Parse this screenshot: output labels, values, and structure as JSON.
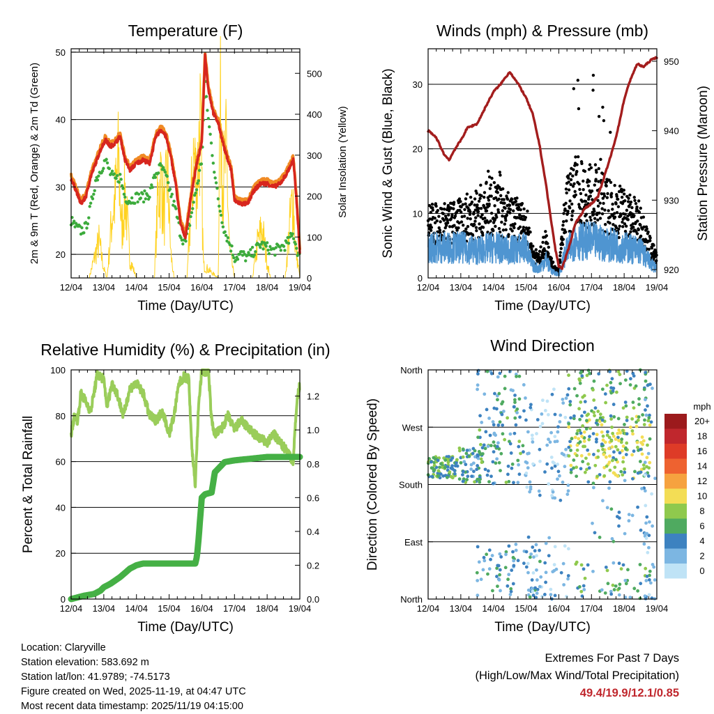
{
  "chart_data": [
    {
      "type": "line",
      "title": "Temperature (F)",
      "xlabel": "Time (Day/UTC)",
      "ylabel": "2m & 9m T (Red, Orange) & 2m Td (Green)",
      "ylabel_right": "Solar Insolation (Yellow)",
      "x_ticks": [
        "12/04",
        "13/04",
        "14/04",
        "15/04",
        "16/04",
        "17/04",
        "18/04",
        "19/04"
      ],
      "ylim": [
        16.5,
        50.5
      ],
      "y_ticks": [
        20,
        30,
        40,
        50
      ],
      "ylim_right": [
        0,
        560
      ],
      "y_ticks_right": [
        0,
        100,
        200,
        300,
        400,
        500
      ],
      "grid_y": [
        20,
        30,
        40,
        50
      ],
      "colors": {
        "temp_2m": "#d7261e",
        "temp_9m": "#f08a24",
        "dewpoint": "#3cab3c",
        "solar": "#ffd21f"
      },
      "series": [
        {
          "name": "2m T",
          "x": [
            0,
            0.15,
            0.3,
            0.45,
            0.6,
            0.75,
            0.9,
            1.05,
            1.2,
            1.35,
            1.5,
            1.65,
            1.8,
            2.0,
            2.2,
            2.4,
            2.6,
            2.75,
            2.9,
            3.05,
            3.2,
            3.35,
            3.5,
            3.7,
            3.85,
            4.0,
            4.1,
            4.2,
            4.35,
            4.5,
            4.7,
            4.9,
            5.0,
            5.2,
            5.4,
            5.6,
            5.8,
            6.0,
            6.2,
            6.4,
            6.6,
            6.8,
            6.9,
            7.0
          ],
          "values": [
            31.2,
            29.5,
            27.5,
            28.5,
            31.5,
            33.5,
            35.5,
            37.0,
            36.0,
            36.5,
            37.5,
            34.0,
            32.5,
            33.5,
            34.0,
            33.5,
            37.5,
            38.5,
            37.5,
            34.5,
            30.5,
            24.5,
            22.5,
            29.5,
            33.5,
            36.5,
            49.5,
            44.5,
            41.0,
            39.5,
            35.5,
            32.5,
            28.0,
            27.5,
            27.5,
            29.5,
            30.5,
            30.5,
            30.0,
            30.5,
            32.0,
            34.0,
            28.0,
            20.5
          ]
        },
        {
          "name": "Td",
          "x": [
            0,
            0.15,
            0.3,
            0.45,
            0.6,
            0.75,
            0.9,
            1.05,
            1.2,
            1.35,
            1.5,
            1.65,
            1.8,
            2.0,
            2.2,
            2.4,
            2.6,
            2.75,
            2.9,
            3.05,
            3.2,
            3.35,
            3.5,
            3.7,
            3.85,
            4.0,
            4.1,
            4.2,
            4.35,
            4.5,
            4.7,
            4.9,
            5.0,
            5.2,
            5.4,
            5.6,
            5.8,
            6.0,
            6.2,
            6.4,
            6.6,
            6.8,
            6.9,
            7.0
          ],
          "values": [
            25.0,
            24.0,
            23.5,
            24.0,
            27.0,
            31.0,
            32.5,
            34.0,
            32.0,
            31.0,
            31.5,
            28.5,
            28.0,
            28.5,
            28.5,
            29.0,
            32.0,
            33.0,
            31.5,
            29.0,
            26.5,
            23.0,
            21.5,
            26.5,
            30.0,
            34.0,
            45.5,
            40.0,
            34.0,
            28.0,
            23.5,
            21.0,
            19.5,
            20.0,
            19.5,
            20.5,
            21.5,
            21.0,
            20.5,
            21.0,
            21.5,
            23.0,
            21.0,
            19.5
          ]
        },
        {
          "name": "Solar",
          "x": [
            0,
            0.55,
            0.7,
            0.85,
            1.0,
            1.1,
            1.25,
            1.35,
            1.45,
            1.55,
            1.65,
            1.8,
            2.0,
            2.55,
            2.65,
            2.75,
            2.85,
            2.95,
            3.05,
            3.15,
            3.55,
            3.65,
            3.75,
            3.85,
            3.95,
            4.05,
            4.5,
            4.55,
            4.6,
            4.65,
            4.75,
            4.85,
            5.0,
            5.55,
            5.7,
            5.85,
            6.0,
            6.1,
            6.55,
            6.7,
            6.8,
            6.85,
            7.0
          ],
          "values": [
            0,
            0,
            60,
            120,
            30,
            0,
            200,
            260,
            380,
            150,
            280,
            60,
            0,
            0,
            250,
            330,
            200,
            350,
            80,
            0,
            0,
            200,
            400,
            300,
            520,
            40,
            0,
            480,
            560,
            300,
            400,
            90,
            0,
            0,
            110,
            160,
            50,
            0,
            0,
            180,
            270,
            120,
            0
          ]
        }
      ]
    },
    {
      "type": "line",
      "title": "Winds (mph) & Pressure (mb)",
      "xlabel": "Time (Day/UTC)",
      "ylabel": "Sonic Wind & Gust (Blue, Black)",
      "ylabel_right": "Station Pressure (Maroon)",
      "x_ticks": [
        "12/04",
        "13/04",
        "14/04",
        "15/04",
        "16/04",
        "17/04",
        "18/04",
        "19/04"
      ],
      "ylim": [
        0,
        35.5
      ],
      "y_ticks": [
        0,
        10,
        20,
        30
      ],
      "ylim_right": [
        918.8,
        951.8
      ],
      "y_ticks_right": [
        920,
        930,
        940,
        950
      ],
      "grid_y": [
        0,
        10,
        20,
        30
      ],
      "colors": {
        "wind": "#4f95d1",
        "gust": "#000000",
        "pressure": "#a31d1d"
      },
      "series": [
        {
          "name": "Pressure",
          "x": [
            0,
            0.25,
            0.5,
            0.65,
            0.8,
            1.0,
            1.2,
            1.5,
            1.8,
            2.0,
            2.2,
            2.5,
            2.8,
            3.0,
            3.2,
            3.4,
            3.6,
            3.75,
            3.9,
            4.0,
            4.1,
            4.3,
            4.5,
            4.8,
            5.0,
            5.2,
            5.4,
            5.6,
            5.8,
            6.0,
            6.2,
            6.4,
            6.6,
            6.8,
            7.0
          ],
          "values": [
            940,
            939,
            936.5,
            935.8,
            937.2,
            938.6,
            940.4,
            941.0,
            943.8,
            945.6,
            946.6,
            948.5,
            946.4,
            944.7,
            942.4,
            938.2,
            932.5,
            927.5,
            922.8,
            920.5,
            920.2,
            923.0,
            926.6,
            928.8,
            929.5,
            930.5,
            933.5,
            936.5,
            940.0,
            944.5,
            947.5,
            949.6,
            949.2,
            950.1,
            950.6
          ]
        },
        {
          "name": "Wind",
          "x": [
            0,
            0.5,
            1.0,
            1.5,
            2.0,
            2.5,
            3.0,
            3.2,
            3.4,
            3.6,
            3.8,
            4.0,
            4.2,
            4.5,
            5.0,
            5.5,
            6.0,
            6.5,
            6.8,
            7.0
          ],
          "values": [
            5,
            5,
            5,
            4.5,
            5,
            4.5,
            5,
            2,
            1.5,
            3,
            1,
            0.5,
            4,
            6,
            6,
            5.5,
            5,
            4.5,
            2.5,
            1.5
          ]
        },
        {
          "name": "Gust",
          "x": [
            0,
            0.5,
            1.0,
            1.5,
            2.0,
            2.5,
            3.0,
            3.2,
            3.4,
            3.6,
            3.8,
            4.0,
            4.2,
            4.5,
            5.0,
            5.5,
            6.0,
            6.5,
            6.8,
            7.0
          ],
          "values": [
            9,
            9,
            9.5,
            11,
            12,
            10,
            9,
            4,
            3,
            6,
            2,
            1,
            12,
            14,
            14,
            12,
            11,
            9,
            5,
            3
          ]
        }
      ]
    },
    {
      "type": "line",
      "title": "Relative Humidity (%) & Precipitation (in)",
      "xlabel": "Time (Day/UTC)",
      "ylabel": "Percent & Total Rainfall",
      "x_ticks": [
        "12/04",
        "13/04",
        "14/04",
        "15/04",
        "16/04",
        "17/04",
        "18/04",
        "19/04"
      ],
      "ylim": [
        0,
        100
      ],
      "y_ticks": [
        0,
        20,
        40,
        60,
        80,
        100
      ],
      "ylim_right": [
        0,
        1.355
      ],
      "y_ticks_right": [
        "0.0",
        "0.2",
        "0.4",
        "0.6",
        "0.8",
        "1.0",
        "1.2"
      ],
      "grid_y": [
        0,
        20,
        40,
        60,
        80,
        100
      ],
      "colors": {
        "rh": "#9acd5a",
        "precip": "#45b045"
      },
      "series": [
        {
          "name": "RH",
          "x": [
            0,
            0.1,
            0.2,
            0.3,
            0.45,
            0.6,
            0.8,
            1.0,
            1.1,
            1.25,
            1.4,
            1.6,
            1.8,
            2.0,
            2.2,
            2.4,
            2.6,
            2.8,
            3.0,
            3.15,
            3.3,
            3.45,
            3.6,
            3.7,
            3.8,
            3.9,
            4.0,
            4.1,
            4.2,
            4.3,
            4.4,
            4.6,
            4.8,
            5.0,
            5.2,
            5.4,
            5.6,
            5.8,
            6.0,
            6.2,
            6.4,
            6.6,
            6.8,
            6.9,
            7.0
          ],
          "values": [
            72,
            80,
            78,
            90,
            86,
            82,
            98,
            96,
            84,
            94,
            90,
            80,
            92,
            94,
            90,
            80,
            78,
            82,
            72,
            80,
            94,
            97,
            96,
            65,
            50,
            84,
            100,
            99,
            100,
            78,
            72,
            74,
            80,
            74,
            78,
            75,
            72,
            70,
            68,
            72,
            68,
            65,
            60,
            85,
            94
          ]
        },
        {
          "name": "Precip",
          "x": [
            0,
            0.4,
            0.7,
            0.9,
            1.0,
            1.2,
            1.5,
            1.8,
            2.0,
            2.2,
            2.5,
            3.0,
            3.5,
            3.8,
            3.85,
            3.9,
            3.95,
            4.0,
            4.1,
            4.3,
            4.4,
            4.6,
            4.7,
            5.0,
            5.5,
            6.0,
            6.5,
            7.0
          ],
          "values": [
            0,
            0.02,
            0.03,
            0.05,
            0.07,
            0.09,
            0.13,
            0.18,
            0.2,
            0.21,
            0.21,
            0.21,
            0.21,
            0.21,
            0.25,
            0.35,
            0.48,
            0.6,
            0.62,
            0.63,
            0.75,
            0.79,
            0.81,
            0.82,
            0.83,
            0.84,
            0.84,
            0.84
          ]
        }
      ]
    },
    {
      "type": "scatter",
      "title": "Wind Direction",
      "xlabel": "Time (Day/UTC)",
      "ylabel": "Direction (Colored By Speed)",
      "x_ticks": [
        "12/04",
        "13/04",
        "14/04",
        "15/04",
        "16/04",
        "17/04",
        "18/04",
        "19/04"
      ],
      "y_ticks": [
        "North",
        "East",
        "South",
        "West",
        "North"
      ],
      "y_ticks_deg": [
        0,
        90,
        180,
        270,
        360
      ],
      "ylim": [
        0,
        360
      ],
      "legend": {
        "title": "mph",
        "labels": [
          "20+",
          "18",
          "16",
          "14",
          "12",
          "10",
          "8",
          "6",
          "4",
          "2",
          "0"
        ],
        "colors": [
          "#9c1a1c",
          "#c0272d",
          "#de3b27",
          "#ee6230",
          "#f6a23f",
          "#f3dd55",
          "#8fc94d",
          "#4faa60",
          "#3d82c0",
          "#7cb6e2",
          "#bfe3f6"
        ]
      },
      "clusters": [
        {
          "t": [
            0.0,
            0.9
          ],
          "dir": [
            190,
            225
          ],
          "speed": [
            3,
            9
          ],
          "count": 90
        },
        {
          "t": [
            0.9,
            1.7
          ],
          "dir": [
            180,
            240
          ],
          "speed": [
            2,
            8
          ],
          "count": 60
        },
        {
          "t": [
            1.5,
            3.0
          ],
          "dir": [
            180,
            360
          ],
          "speed": [
            1,
            8
          ],
          "count": 120
        },
        {
          "t": [
            1.5,
            3.5
          ],
          "dir": [
            0,
            90
          ],
          "speed": [
            1,
            7
          ],
          "count": 70
        },
        {
          "t": [
            3.0,
            4.3
          ],
          "dir": [
            150,
            330
          ],
          "speed": [
            0,
            4
          ],
          "count": 80
        },
        {
          "t": [
            3.0,
            4.3
          ],
          "dir": [
            0,
            100
          ],
          "speed": [
            0,
            4
          ],
          "count": 40
        },
        {
          "t": [
            4.3,
            6.8
          ],
          "dir": [
            190,
            290
          ],
          "speed": [
            4,
            11
          ],
          "count": 200
        },
        {
          "t": [
            4.3,
            6.8
          ],
          "dir": [
            280,
            360
          ],
          "speed": [
            3,
            9
          ],
          "count": 90
        },
        {
          "t": [
            4.5,
            6.8
          ],
          "dir": [
            0,
            60
          ],
          "speed": [
            2,
            8
          ],
          "count": 50
        },
        {
          "t": [
            4.8,
            6.8
          ],
          "dir": [
            90,
            190
          ],
          "speed": [
            1,
            6
          ],
          "count": 30
        },
        {
          "t": [
            6.6,
            7.0
          ],
          "dir": [
            0,
            360
          ],
          "speed": [
            0,
            4
          ],
          "count": 35
        }
      ]
    }
  ],
  "station": {
    "location": "Location: Claryville",
    "elevation": "Station elevation: 583.692 m",
    "latlon": "Station lat/lon: 41.9789; -74.5173",
    "created": "Figure created on Wed, 2025-11-19, at 04:47 UTC",
    "latest": "Most recent data timestamp: 2025/11/19 04:15:00"
  },
  "extremes": {
    "heading": "Extremes For Past 7 Days",
    "subheading": "(High/Low/Max Wind/Total Precipitation)",
    "values": "49.4/19.9/12.1/0.85"
  }
}
